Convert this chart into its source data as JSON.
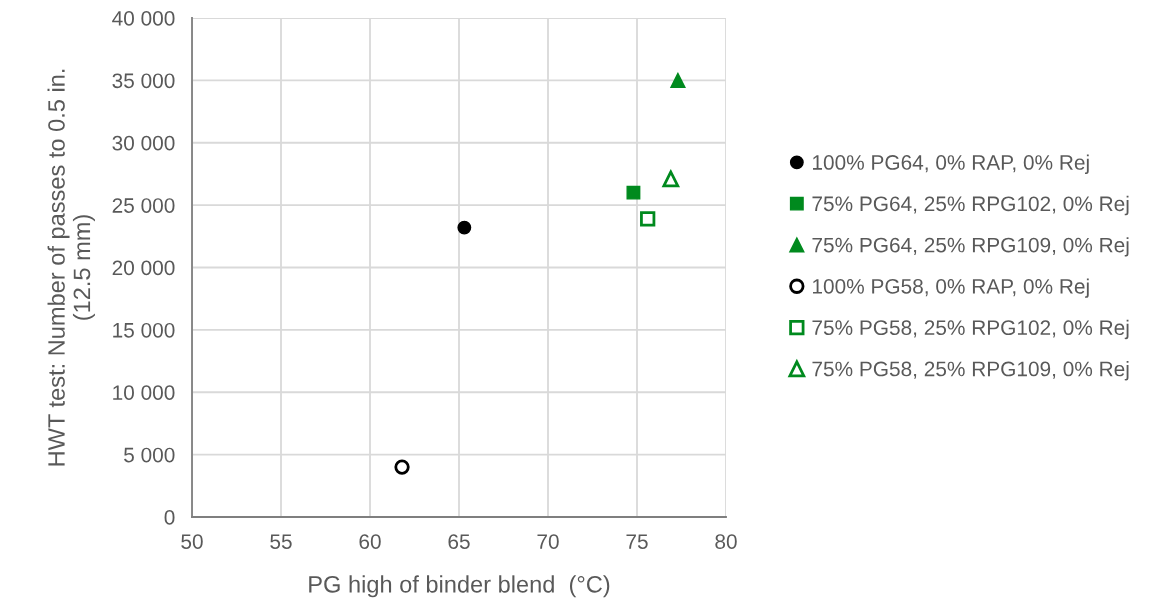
{
  "chart_data": {
    "type": "scatter",
    "xlabel": "PG high of binder blend  (°C)",
    "ylabel": "HWT test: Number of passes to 0.5 in.\n(12.5 mm)",
    "xlim": [
      50,
      80
    ],
    "xticks": [
      50,
      55,
      60,
      65,
      70,
      75,
      80
    ],
    "ylim": [
      0,
      40000
    ],
    "yticks": [
      0,
      {
        "value": 5000,
        "label": "5 000"
      },
      {
        "value": 10000,
        "label": "10 000"
      },
      {
        "value": 15000,
        "label": "15 000"
      },
      {
        "value": 20000,
        "label": "20 000"
      },
      {
        "value": 25000,
        "label": "25 000"
      },
      {
        "value": 30000,
        "label": "30 000"
      },
      {
        "value": 35000,
        "label": "35 000"
      },
      {
        "value": 40000,
        "label": "40 000"
      }
    ],
    "grid": true,
    "legend": "right",
    "series": [
      {
        "name": "100% PG64, 0% RAP, 0% Rej",
        "color": "#000000",
        "marker": "circle",
        "x": [
          65.3
        ],
        "values": [
          23200
        ]
      },
      {
        "name": "75% PG64, 25% RPG102, 0% Rej",
        "color": "#008a1e",
        "marker": "square",
        "x": [
          74.8
        ],
        "values": [
          26000
        ]
      },
      {
        "name": "75% PG64, 25% RPG109, 0% Rej",
        "color": "#008a1e",
        "marker": "triangle",
        "x": [
          77.3
        ],
        "values": [
          35000
        ]
      },
      {
        "name": "100% PG58, 0% RAP, 0% Rej",
        "color": "#000000",
        "marker": "circle",
        "colors": [
          "#ffffff"
        ],
        "x": [
          61.8
        ],
        "values": [
          4000
        ]
      },
      {
        "name": "75% PG58, 25% RPG102, 0% Rej",
        "color": "#008a1e",
        "marker": "square",
        "colors": [
          "#ffffff"
        ],
        "x": [
          75.6
        ],
        "values": [
          23900
        ]
      },
      {
        "name": "75% PG58, 25% RPG109, 0% Rej",
        "color": "#008a1e",
        "marker": "triangle",
        "colors": [
          "#ffffff"
        ],
        "x": [
          76.9
        ],
        "values": [
          27100
        ]
      }
    ]
  }
}
